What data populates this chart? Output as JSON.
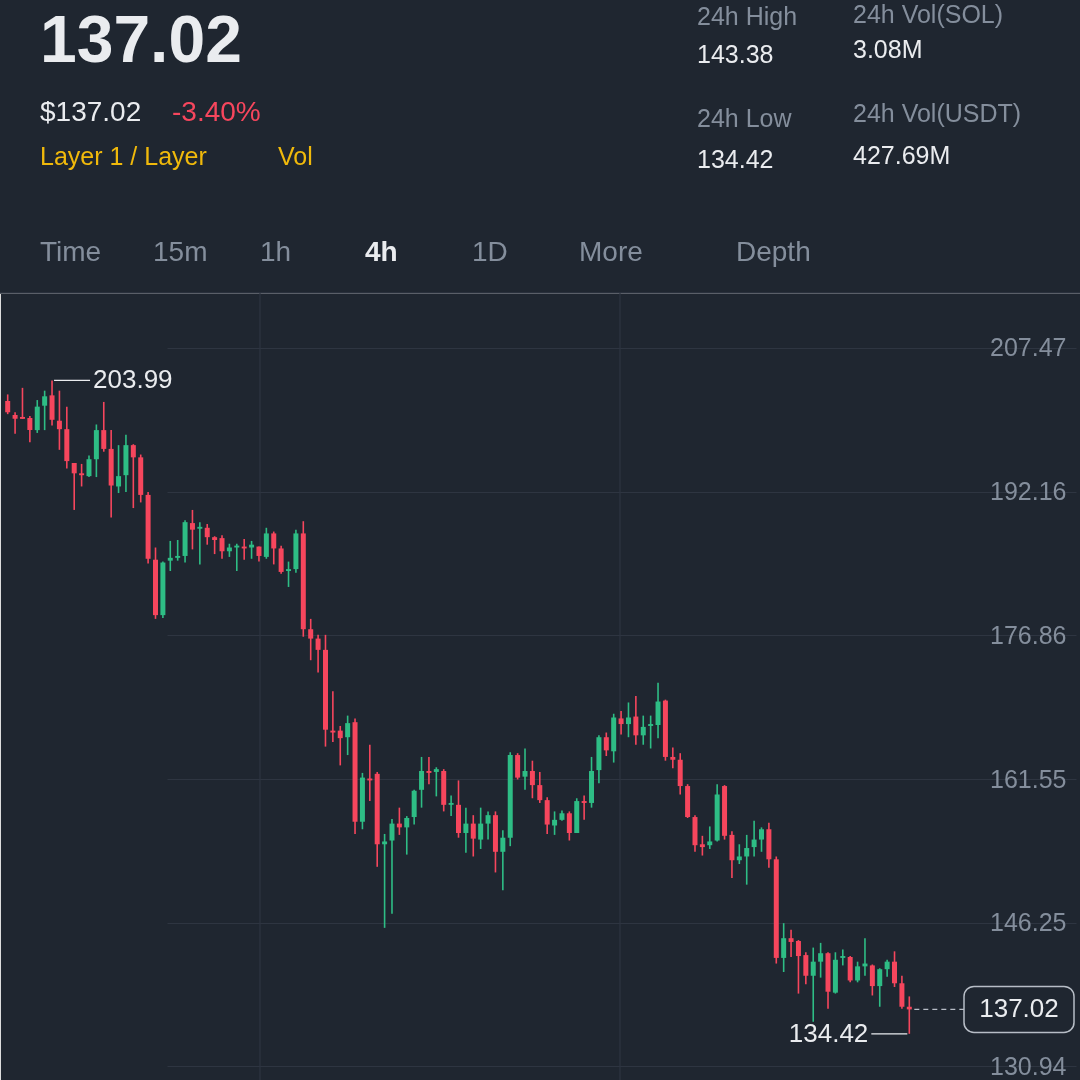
{
  "chart_data": {
    "type": "candlestick",
    "title": "137.02",
    "annotations": [
      "$137.02",
      "-3.40%",
      "Layer 1 / Layer",
      "Vol",
      "24h High",
      "143.38",
      "24h Low",
      "134.42",
      "24h Vol(SOL)",
      "3.08M",
      "24h Vol(USDT)",
      "427.69M",
      "Time",
      "15m",
      "1h",
      "4h",
      "1D",
      "More",
      "Depth",
      "203.99",
      "134.42"
    ],
    "categories": [
      null,
      null,
      null,
      null,
      null,
      null,
      null,
      null,
      null,
      null,
      null,
      null,
      null,
      null,
      null,
      null,
      null,
      null,
      null,
      null,
      null,
      null,
      null,
      null,
      null,
      null,
      null,
      null,
      null,
      null,
      null,
      null,
      null,
      null,
      null,
      null,
      null,
      null,
      null,
      null,
      null,
      null,
      null,
      null,
      null,
      null,
      null,
      null,
      null,
      null,
      null,
      null,
      null,
      null,
      null,
      null,
      null,
      null,
      null,
      null,
      null,
      null,
      null,
      null,
      null,
      null,
      null,
      null,
      null,
      null,
      null,
      null,
      null,
      null,
      null,
      null,
      null,
      null,
      null,
      null,
      null,
      null,
      null,
      null,
      null,
      null,
      null,
      null,
      null,
      null,
      null,
      null,
      null,
      null,
      null,
      null,
      null,
      null,
      null,
      null,
      null,
      null,
      null,
      null,
      null,
      null,
      null,
      null,
      null,
      null,
      null,
      null,
      null,
      null,
      null,
      null,
      null,
      null,
      null,
      null,
      null,
      null,
      null
    ],
    "ohlc": [
      [
        201.8,
        202.5,
        200.4,
        200.6
      ],
      [
        200.3,
        200.6,
        198.3,
        199.9
      ],
      [
        200.1,
        203.2,
        199.9,
        199.9
      ],
      [
        200.0,
        200.2,
        197.4,
        198.7
      ],
      [
        198.7,
        201.9,
        198.4,
        201.2
      ],
      [
        201.3,
        202.9,
        198.7,
        202.3
      ],
      [
        202.4,
        203.99,
        199.2,
        199.8
      ],
      [
        199.7,
        202.9,
        196.6,
        198.8
      ],
      [
        198.8,
        201.2,
        194.6,
        195.4
      ],
      [
        195.2,
        195.2,
        190.2,
        194.1
      ],
      [
        194.1,
        195.1,
        192.7,
        193.9
      ],
      [
        193.8,
        196.0,
        193.7,
        195.6
      ],
      [
        195.6,
        199.3,
        193.7,
        198.7
      ],
      [
        198.7,
        201.7,
        196.4,
        196.7
      ],
      [
        196.7,
        198.7,
        189.4,
        192.8
      ],
      [
        192.7,
        197.1,
        192.0,
        193.8
      ],
      [
        193.9,
        198.2,
        192.1,
        197.1
      ],
      [
        197.1,
        197.2,
        190.4,
        195.8
      ],
      [
        195.8,
        196.1,
        191.0,
        191.8
      ],
      [
        191.8,
        192.1,
        184.5,
        185.0
      ],
      [
        184.9,
        186.2,
        178.6,
        179.0
      ],
      [
        179.0,
        184.7,
        178.7,
        184.6
      ],
      [
        184.8,
        186.9,
        183.7,
        185.1
      ],
      [
        185.1,
        187.0,
        184.8,
        185.3
      ],
      [
        185.3,
        189.1,
        184.6,
        188.9
      ],
      [
        188.8,
        190.2,
        186.0,
        188.1
      ],
      [
        188.2,
        188.9,
        184.4,
        188.4
      ],
      [
        188.3,
        188.7,
        186.5,
        187.3
      ],
      [
        187.3,
        187.4,
        185.5,
        187.0
      ],
      [
        187.2,
        187.5,
        185.0,
        185.8
      ],
      [
        185.8,
        186.6,
        185.2,
        186.2
      ],
      [
        186.2,
        186.6,
        183.7,
        186.4
      ],
      [
        186.3,
        187.1,
        184.9,
        186.1
      ],
      [
        186.2,
        186.9,
        185.0,
        186.5
      ],
      [
        186.3,
        186.3,
        184.7,
        185.3
      ],
      [
        185.2,
        188.3,
        185.0,
        187.7
      ],
      [
        187.7,
        187.9,
        184.4,
        186.1
      ],
      [
        186.1,
        186.4,
        183.4,
        183.6
      ],
      [
        183.7,
        184.7,
        182.0,
        183.9
      ],
      [
        183.9,
        188.1,
        183.5,
        187.7
      ],
      [
        187.7,
        189.0,
        176.7,
        177.5
      ],
      [
        177.5,
        178.6,
        174.2,
        176.5
      ],
      [
        176.5,
        176.9,
        172.9,
        175.3
      ],
      [
        175.3,
        176.9,
        165.0,
        166.8
      ],
      [
        166.7,
        170.9,
        165.5,
        166.5
      ],
      [
        166.7,
        167.2,
        163.0,
        165.9
      ],
      [
        166.0,
        168.3,
        164.1,
        167.5
      ],
      [
        167.6,
        168.0,
        155.7,
        157.0
      ],
      [
        157.0,
        162.2,
        156.2,
        161.7
      ],
      [
        161.6,
        165.2,
        159.2,
        161.4
      ],
      [
        162.1,
        162.3,
        152.2,
        154.6
      ],
      [
        154.6,
        155.7,
        145.7,
        154.9
      ],
      [
        155.0,
        157.3,
        147.2,
        156.8
      ],
      [
        156.8,
        158.5,
        155.6,
        156.4
      ],
      [
        156.4,
        157.6,
        153.5,
        157.4
      ],
      [
        157.5,
        160.4,
        156.7,
        160.3
      ],
      [
        160.4,
        163.9,
        158.5,
        162.4
      ],
      [
        162.4,
        163.9,
        161.0,
        162.2
      ],
      [
        162.3,
        162.8,
        159.7,
        162.6
      ],
      [
        162.4,
        162.6,
        158.1,
        158.8
      ],
      [
        158.8,
        159.8,
        157.6,
        159.0
      ],
      [
        158.8,
        161.4,
        155.3,
        155.8
      ],
      [
        155.8,
        158.5,
        153.7,
        156.8
      ],
      [
        156.8,
        157.7,
        153.3,
        155.2
      ],
      [
        155.1,
        158.5,
        154.1,
        156.8
      ],
      [
        156.8,
        158.1,
        155.1,
        157.7
      ],
      [
        157.7,
        158.1,
        151.6,
        153.8
      ],
      [
        153.8,
        156.1,
        149.7,
        155.3
      ],
      [
        155.3,
        164.4,
        154.4,
        164.1
      ],
      [
        164.1,
        164.3,
        161.5,
        161.7
      ],
      [
        161.8,
        164.8,
        160.4,
        162.4
      ],
      [
        162.4,
        163.5,
        159.5,
        160.9
      ],
      [
        160.9,
        162.3,
        159.0,
        159.3
      ],
      [
        159.3,
        159.6,
        155.7,
        156.7
      ],
      [
        156.6,
        158.1,
        155.6,
        157.2
      ],
      [
        157.2,
        158.2,
        157.1,
        157.9
      ],
      [
        157.9,
        158.1,
        155.0,
        155.8
      ],
      [
        155.8,
        159.5,
        155.8,
        159.2
      ],
      [
        159.2,
        159.8,
        157.2,
        159.0
      ],
      [
        159.0,
        163.9,
        158.5,
        162.4
      ],
      [
        162.5,
        166.2,
        161.1,
        166.0
      ],
      [
        166.0,
        166.5,
        164.0,
        164.6
      ],
      [
        164.5,
        168.5,
        163.3,
        168.1
      ],
      [
        168.0,
        168.8,
        166.3,
        167.4
      ],
      [
        167.4,
        169.7,
        166.0,
        168.1
      ],
      [
        168.2,
        170.4,
        165.2,
        166.2
      ],
      [
        166.2,
        168.3,
        165.2,
        167.1
      ],
      [
        167.2,
        168.3,
        164.8,
        167.4
      ],
      [
        167.3,
        171.8,
        165.9,
        169.8
      ],
      [
        169.9,
        170.0,
        163.5,
        163.9
      ],
      [
        163.9,
        164.9,
        162.7,
        163.6
      ],
      [
        163.6,
        164.3,
        159.9,
        160.8
      ],
      [
        160.8,
        161.0,
        157.4,
        157.5
      ],
      [
        157.5,
        157.7,
        153.8,
        154.5
      ],
      [
        154.6,
        155.5,
        153.4,
        154.3
      ],
      [
        154.5,
        156.5,
        154.1,
        154.9
      ],
      [
        155.0,
        161.0,
        154.9,
        159.9
      ],
      [
        160.8,
        160.9,
        155.1,
        155.5
      ],
      [
        155.6,
        156.0,
        151.0,
        152.9
      ],
      [
        152.9,
        154.6,
        152.5,
        153.3
      ],
      [
        153.3,
        155.6,
        150.3,
        154.2
      ],
      [
        154.3,
        157.1,
        153.3,
        155.1
      ],
      [
        155.1,
        156.4,
        153.8,
        156.2
      ],
      [
        156.2,
        156.9,
        152.1,
        153.0
      ],
      [
        153.0,
        153.3,
        141.9,
        142.5
      ],
      [
        142.5,
        146.2,
        141.0,
        144.6
      ],
      [
        144.6,
        145.5,
        142.6,
        144.2
      ],
      [
        144.3,
        144.4,
        138.7,
        142.7
      ],
      [
        142.8,
        143.1,
        139.7,
        140.6
      ],
      [
        140.6,
        143.6,
        135.7,
        142.1
      ],
      [
        142.1,
        144.1,
        140.4,
        143.0
      ],
      [
        143.0,
        143.1,
        137.1,
        138.9
      ],
      [
        138.8,
        143.1,
        138.7,
        142.3
      ],
      [
        142.5,
        143.4,
        141.7,
        142.7
      ],
      [
        142.6,
        142.7,
        139.9,
        140.1
      ],
      [
        140.1,
        142.1,
        139.9,
        141.6
      ],
      [
        141.6,
        144.6,
        140.6,
        141.9
      ],
      [
        141.7,
        141.8,
        138.5,
        139.5
      ],
      [
        139.5,
        141.4,
        137.3,
        141.3
      ],
      [
        141.3,
        142.3,
        140.5,
        142.1
      ],
      [
        142.1,
        143.2,
        139.4,
        139.8
      ],
      [
        139.8,
        140.6,
        137.1,
        137.3
      ],
      [
        137.3,
        138.4,
        134.42,
        137.02
      ]
    ],
    "colors": [
      "#f6465d",
      "#f6465d",
      "#f6465d",
      "#f6465d",
      "#2ebd85",
      "#2ebd85",
      "#f6465d",
      "#f6465d",
      "#f6465d",
      "#f6465d",
      "#f6465d",
      "#2ebd85",
      "#2ebd85",
      "#f6465d",
      "#f6465d",
      "#2ebd85",
      "#2ebd85",
      "#f6465d",
      "#f6465d",
      "#f6465d",
      "#f6465d",
      "#2ebd85",
      "#2ebd85",
      "#2ebd85",
      "#2ebd85",
      "#f6465d",
      "#2ebd85",
      "#f6465d",
      "#f6465d",
      "#f6465d",
      "#2ebd85",
      "#2ebd85",
      "#f6465d",
      "#2ebd85",
      "#f6465d",
      "#2ebd85",
      "#f6465d",
      "#f6465d",
      "#2ebd85",
      "#2ebd85",
      "#f6465d",
      "#f6465d",
      "#f6465d",
      "#f6465d",
      "#f6465d",
      "#f6465d",
      "#2ebd85",
      "#f6465d",
      "#2ebd85",
      "#f6465d",
      "#f6465d",
      "#2ebd85",
      "#2ebd85",
      "#f6465d",
      "#2ebd85",
      "#2ebd85",
      "#2ebd85",
      "#f6465d",
      "#2ebd85",
      "#f6465d",
      "#2ebd85",
      "#f6465d",
      "#2ebd85",
      "#f6465d",
      "#2ebd85",
      "#2ebd85",
      "#f6465d",
      "#2ebd85",
      "#2ebd85",
      "#f6465d",
      "#2ebd85",
      "#f6465d",
      "#f6465d",
      "#f6465d",
      "#2ebd85",
      "#2ebd85",
      "#f6465d",
      "#2ebd85",
      "#f6465d",
      "#2ebd85",
      "#2ebd85",
      "#f6465d",
      "#2ebd85",
      "#f6465d",
      "#2ebd85",
      "#f6465d",
      "#2ebd85",
      "#2ebd85",
      "#2ebd85",
      "#f6465d",
      "#f6465d",
      "#f6465d",
      "#f6465d",
      "#f6465d",
      "#f6465d",
      "#2ebd85",
      "#2ebd85",
      "#f6465d",
      "#f6465d",
      "#2ebd85",
      "#2ebd85",
      "#2ebd85",
      "#2ebd85",
      "#f6465d",
      "#f6465d",
      "#2ebd85",
      "#f6465d",
      "#f6465d",
      "#f6465d",
      "#2ebd85",
      "#2ebd85",
      "#f6465d",
      "#2ebd85",
      "#2ebd85",
      "#f6465d",
      "#2ebd85",
      "#2ebd85",
      "#f6465d",
      "#2ebd85",
      "#2ebd85",
      "#f6465d",
      "#f6465d",
      "#f6465d"
    ],
    "ylim": [
      129.5,
      213.3
    ],
    "yticks": [
      207.47,
      192.16,
      176.86,
      161.55,
      146.25,
      130.94
    ],
    "grid": true,
    "tick_labels": "y",
    "ref_lines": [
      {
        "axis": "y",
        "value": 137.02,
        "label": "137.02",
        "line_style": "dashed"
      }
    ]
  }
}
